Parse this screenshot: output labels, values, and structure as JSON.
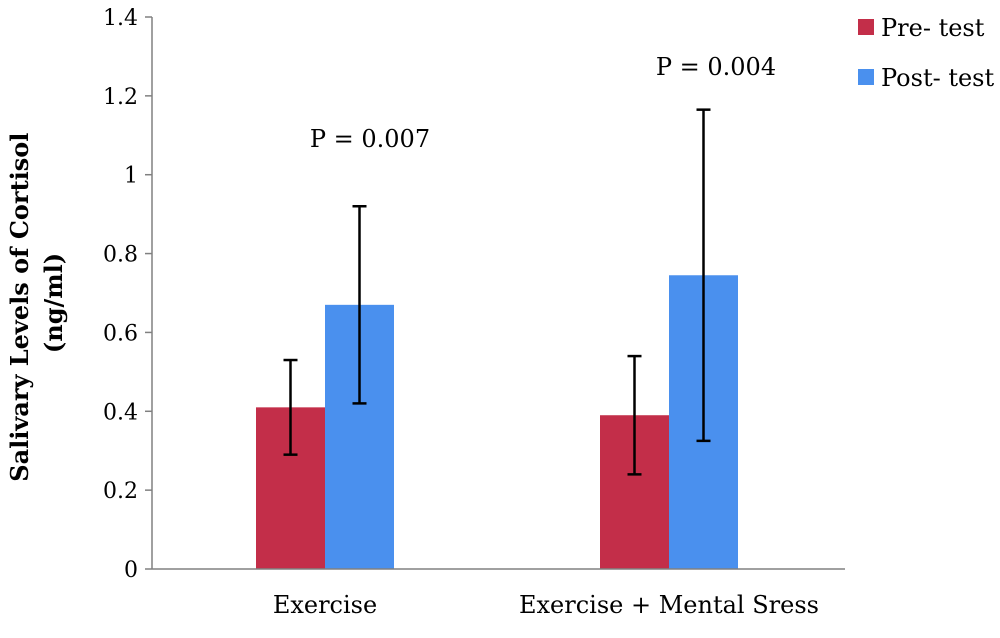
{
  "chart_data": {
    "type": "bar",
    "ylabel_line1": "Salivary Levels of Cortisol",
    "ylabel_line2": "(ng/ml)",
    "xlabel": "",
    "ylim": [
      0,
      1.4
    ],
    "yticks": [
      0,
      0.2,
      0.4,
      0.6,
      0.8,
      1,
      1.2,
      1.4
    ],
    "ytick_labels": [
      "0",
      "0.2",
      "0.4",
      "0.6",
      "0.8",
      "1",
      "1.2",
      "1.4"
    ],
    "categories": [
      "Exercise",
      "Exercise + Mental Sress"
    ],
    "series": [
      {
        "name": "Pre- test",
        "color": "#C32E49",
        "values": [
          0.41,
          0.39
        ],
        "error": [
          0.12,
          0.15
        ]
      },
      {
        "name": "Post- test",
        "color": "#4A90EE",
        "values": [
          0.67,
          0.745
        ],
        "error": [
          0.25,
          0.42
        ]
      }
    ],
    "annotations": [
      "P = 0.007",
      "P = 0.004"
    ],
    "legend_position": "top-right",
    "grid": false
  }
}
